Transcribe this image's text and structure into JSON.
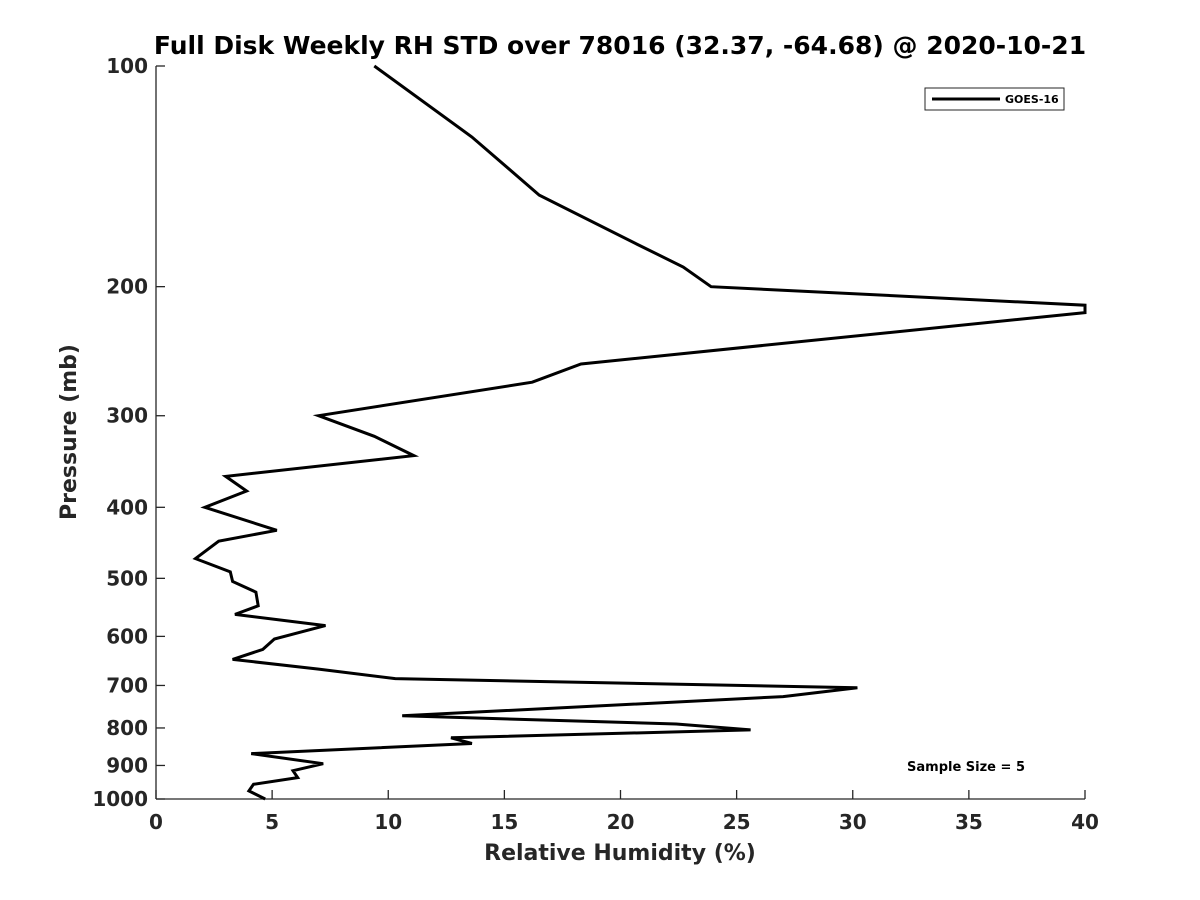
{
  "chart_data": {
    "type": "line",
    "title": "Full Disk Weekly RH STD over 78016 (32.37, -64.68) @ 2020-10-21",
    "xlabel": "Relative Humidity (%)",
    "ylabel": "Pressure (mb)",
    "xlim": [
      0,
      40
    ],
    "ylim": [
      100,
      1000
    ],
    "y_scale": "log",
    "y_reversed": true,
    "x_ticks": [
      0,
      5,
      10,
      15,
      20,
      25,
      30,
      35,
      40
    ],
    "y_ticks": [
      100,
      200,
      300,
      400,
      500,
      600,
      700,
      800,
      900,
      1000
    ],
    "grid": false,
    "legend_position": "top-right",
    "series": [
      {
        "name": "GOES-16",
        "color": "#000000",
        "points": [
          [
            9.4,
            100
          ],
          [
            13.6,
            125
          ],
          [
            16.5,
            150
          ],
          [
            20.7,
            175
          ],
          [
            22.7,
            188
          ],
          [
            23.9,
            200
          ],
          [
            40.0,
            212
          ],
          [
            40.0,
            217
          ],
          [
            18.3,
            255
          ],
          [
            16.2,
            270
          ],
          [
            7.0,
            300
          ],
          [
            9.4,
            320
          ],
          [
            11.1,
            340
          ],
          [
            3.0,
            363
          ],
          [
            3.9,
            380
          ],
          [
            2.1,
            400
          ],
          [
            5.2,
            430
          ],
          [
            2.7,
            445
          ],
          [
            1.7,
            470
          ],
          [
            3.2,
            490
          ],
          [
            3.3,
            505
          ],
          [
            4.3,
            522
          ],
          [
            4.4,
            545
          ],
          [
            3.4,
            560
          ],
          [
            7.3,
            580
          ],
          [
            5.1,
            605
          ],
          [
            4.6,
            625
          ],
          [
            3.3,
            645
          ],
          [
            7.0,
            665
          ],
          [
            10.3,
            685
          ],
          [
            30.2,
            705
          ],
          [
            27.0,
            725
          ],
          [
            10.6,
            770
          ],
          [
            22.4,
            790
          ],
          [
            25.6,
            805
          ],
          [
            12.7,
            825
          ],
          [
            13.6,
            840
          ],
          [
            4.1,
            867
          ],
          [
            7.2,
            895
          ],
          [
            5.9,
            915
          ],
          [
            6.1,
            935
          ],
          [
            4.2,
            955
          ],
          [
            4.0,
            975
          ],
          [
            4.7,
            1000
          ]
        ]
      }
    ],
    "annotations": [
      {
        "text": "Sample Size = 5",
        "position": "bottom-right"
      }
    ]
  }
}
